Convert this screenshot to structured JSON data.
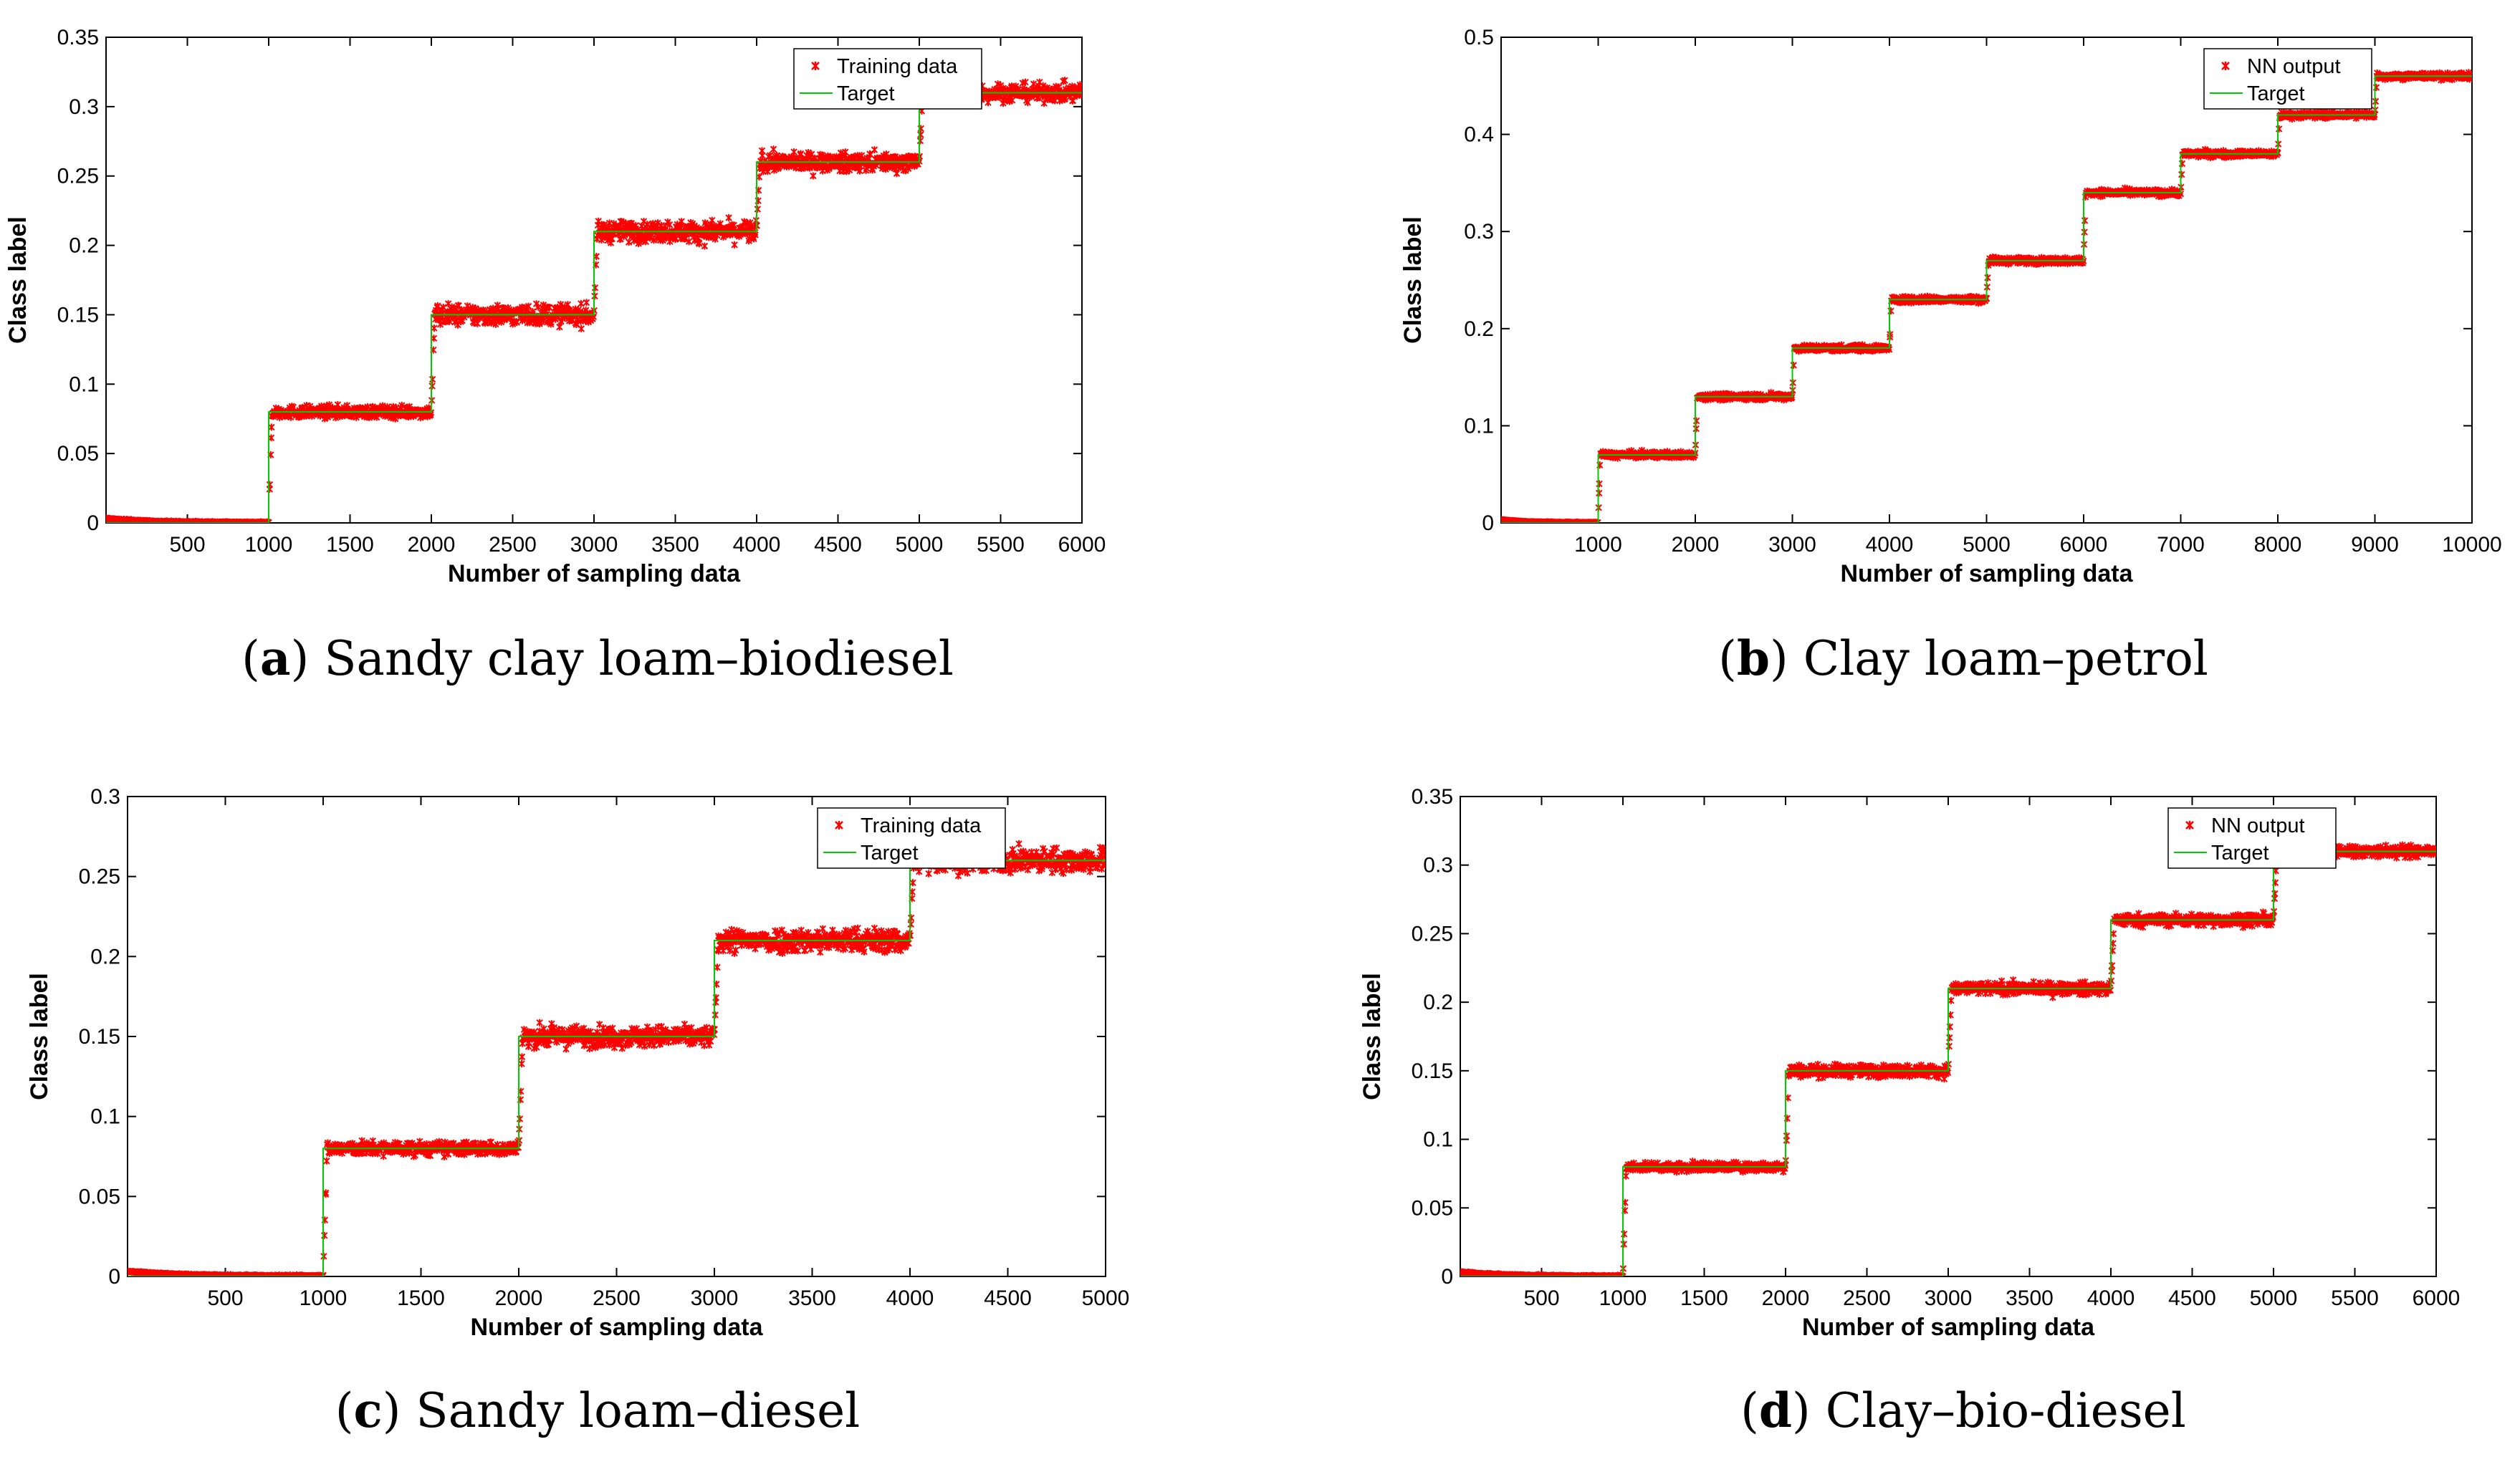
{
  "colors": {
    "data": "#ff0000",
    "target": "#00cc00",
    "axis": "#000000"
  },
  "captions": [
    {
      "letter": "a",
      "text": " Sandy clay loam–biodiesel"
    },
    {
      "letter": "b",
      "text": " Clay loam–petrol"
    },
    {
      "letter": "c",
      "text": " Sandy loam–diesel"
    },
    {
      "letter": "d",
      "text": " Clay–bio-diesel"
    }
  ],
  "chart_data": [
    {
      "type": "scatter",
      "title": "",
      "xlabel": "Number of sampling data",
      "ylabel": "Class label",
      "xlim": [
        0,
        6000
      ],
      "ylim": [
        0,
        0.35
      ],
      "xticks": [
        500,
        1000,
        1500,
        2000,
        2500,
        3000,
        3500,
        4000,
        4500,
        5000,
        5500,
        6000
      ],
      "xtick_labels": [
        "500",
        "1000",
        "1500",
        "2000",
        "2500",
        "3000",
        "3500",
        "4000",
        "4500",
        "5000",
        "5500",
        "6000"
      ],
      "yticks": [
        0,
        0.05,
        0.1,
        0.15,
        0.2,
        0.25,
        0.3,
        0.35
      ],
      "ytick_labels": [
        "0",
        "0.05",
        "0.1",
        "0.15",
        "0.2",
        "0.25",
        "0.3",
        "0.35"
      ],
      "legend": [
        "Training data",
        "Target"
      ],
      "legend_position": "top-right",
      "step_edges": [
        0,
        1000,
        2000,
        3000,
        4000,
        5000,
        6000
      ],
      "levels": [
        0,
        0.08,
        0.15,
        0.21,
        0.26,
        0.31
      ],
      "noise": [
        0.002,
        0.004,
        0.007,
        0.007,
        0.006,
        0.006
      ],
      "series": [
        {
          "name": "Training data",
          "values": "noisy scatter around target levels"
        },
        {
          "name": "Target",
          "values": [
            0,
            0.08,
            0.15,
            0.21,
            0.26,
            0.31
          ]
        }
      ]
    },
    {
      "type": "scatter",
      "title": "",
      "xlabel": "Number of sampling data",
      "ylabel": "Class label",
      "xlim": [
        0,
        10000
      ],
      "ylim": [
        0,
        0.5
      ],
      "xticks": [
        1000,
        2000,
        3000,
        4000,
        5000,
        6000,
        7000,
        8000,
        9000,
        10000
      ],
      "xtick_labels": [
        "1000",
        "2000",
        "3000",
        "4000",
        "5000",
        "6000",
        "7000",
        "8000",
        "9000",
        "10000"
      ],
      "yticks": [
        0,
        0.1,
        0.2,
        0.3,
        0.4,
        0.5
      ],
      "ytick_labels": [
        "0",
        "0.1",
        "0.2",
        "0.3",
        "0.4",
        "0.5"
      ],
      "legend": [
        "NN output",
        "Target"
      ],
      "legend_position": "top-right",
      "step_edges": [
        0,
        1000,
        2000,
        3000,
        4000,
        5000,
        6000,
        7000,
        8000,
        9000,
        10000
      ],
      "levels": [
        0,
        0.07,
        0.13,
        0.18,
        0.23,
        0.27,
        0.34,
        0.38,
        0.42,
        0.46
      ],
      "noise": [
        0.002,
        0.003,
        0.003,
        0.003,
        0.003,
        0.003,
        0.003,
        0.003,
        0.003,
        0.003
      ],
      "series": [
        {
          "name": "NN output",
          "values": "scatter around target levels"
        },
        {
          "name": "Target",
          "values": [
            0,
            0.07,
            0.13,
            0.18,
            0.23,
            0.27,
            0.34,
            0.38,
            0.42,
            0.46
          ]
        }
      ]
    },
    {
      "type": "scatter",
      "title": "",
      "xlabel": "Number of sampling data",
      "ylabel": "Class label",
      "xlim": [
        0,
        5000
      ],
      "ylim": [
        0,
        0.3
      ],
      "xticks": [
        500,
        1000,
        1500,
        2000,
        2500,
        3000,
        3500,
        4000,
        4500,
        5000
      ],
      "xtick_labels": [
        "500",
        "1000",
        "1500",
        "2000",
        "2500",
        "3000",
        "3500",
        "4000",
        "4500",
        "5000"
      ],
      "yticks": [
        0,
        0.05,
        0.1,
        0.15,
        0.2,
        0.25,
        0.3
      ],
      "ytick_labels": [
        "0",
        "0.05",
        "0.1",
        "0.15",
        "0.2",
        "0.25",
        "0.3"
      ],
      "legend": [
        "Training data",
        "Target"
      ],
      "legend_position": "top-right",
      "step_edges": [
        0,
        1000,
        2000,
        3000,
        4000,
        5000
      ],
      "levels": [
        0,
        0.08,
        0.15,
        0.21,
        0.26
      ],
      "noise": [
        0.002,
        0.004,
        0.006,
        0.007,
        0.007
      ],
      "series": [
        {
          "name": "Training data",
          "values": "noisy scatter around target levels"
        },
        {
          "name": "Target",
          "values": [
            0,
            0.08,
            0.15,
            0.21,
            0.26
          ]
        }
      ]
    },
    {
      "type": "scatter",
      "title": "",
      "xlabel": "Number of sampling data",
      "ylabel": "Class label",
      "xlim": [
        0,
        6000
      ],
      "ylim": [
        0,
        0.35
      ],
      "xticks": [
        500,
        1000,
        1500,
        2000,
        2500,
        3000,
        3500,
        4000,
        4500,
        5000,
        5500,
        6000
      ],
      "xtick_labels": [
        "500",
        "1000",
        "1500",
        "2000",
        "2500",
        "3000",
        "3500",
        "4000",
        "4500",
        "5000",
        "5500",
        "6000"
      ],
      "yticks": [
        0,
        0.05,
        0.1,
        0.15,
        0.2,
        0.25,
        0.3,
        0.35
      ],
      "ytick_labels": [
        "0",
        "0.05",
        "0.1",
        "0.15",
        "0.2",
        "0.25",
        "0.3",
        "0.35"
      ],
      "legend": [
        "NN output",
        "Target"
      ],
      "legend_position": "top-right",
      "step_edges": [
        0,
        1000,
        2000,
        3000,
        4000,
        5000,
        6000
      ],
      "levels": [
        0,
        0.08,
        0.15,
        0.21,
        0.26,
        0.31
      ],
      "noise": [
        0.002,
        0.003,
        0.004,
        0.004,
        0.004,
        0.004
      ],
      "series": [
        {
          "name": "NN output",
          "values": "scatter around target levels"
        },
        {
          "name": "Target",
          "values": [
            0,
            0.08,
            0.15,
            0.21,
            0.26,
            0.31
          ]
        }
      ]
    }
  ]
}
